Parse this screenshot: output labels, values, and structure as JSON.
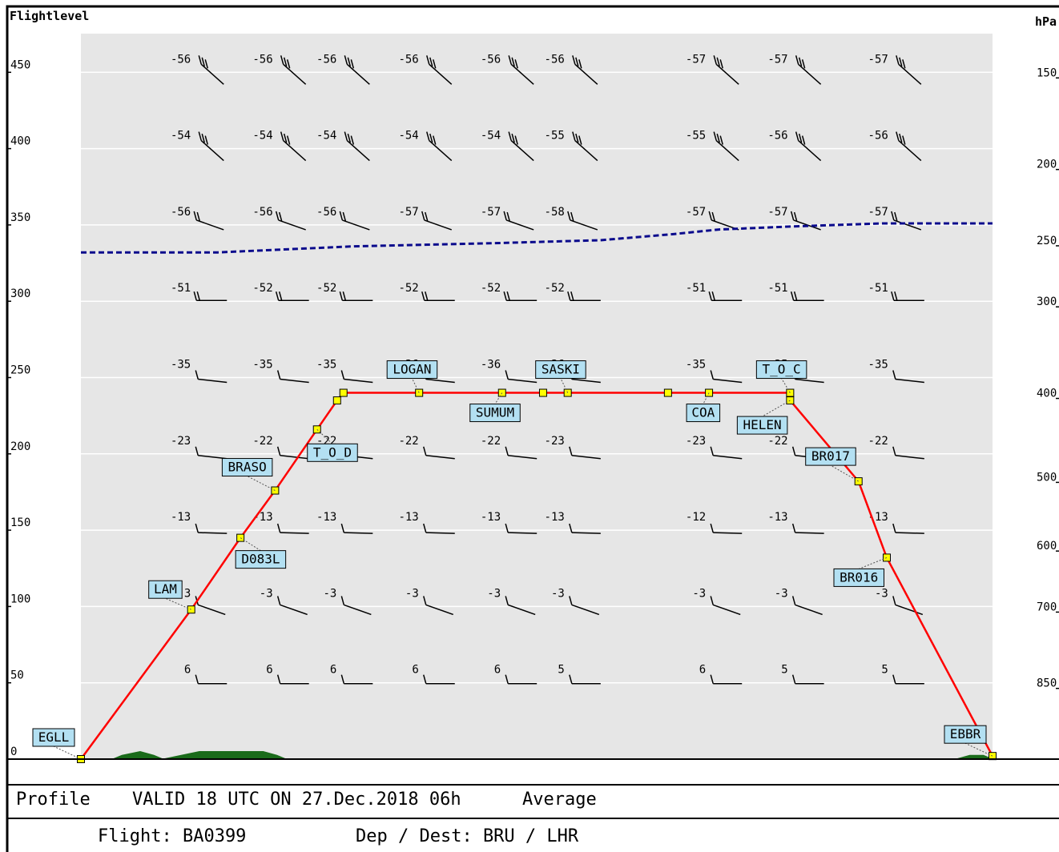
{
  "header": {
    "left_label": "Flightlevel",
    "right_label": "hPa"
  },
  "footer": {
    "profile_label": "Profile",
    "valid_text": "VALID 18 UTC ON 27.Dec.2018 06h",
    "average_label": "Average",
    "flight_text": "Flight: BA0399",
    "dep_dest_text": "Dep / Dest: BRU / LHR"
  },
  "chart_data": {
    "type": "line",
    "x_axis": {
      "label": "",
      "range": [
        0,
        100
      ],
      "ticks_shown": false
    },
    "y_axis": {
      "label": "Flightlevel",
      "range": [
        0,
        470
      ],
      "ticks": [
        0,
        50,
        100,
        150,
        200,
        250,
        300,
        350,
        400,
        450
      ]
    },
    "y2_axis": {
      "label": "hPa",
      "ticks": [
        {
          "fl": 450,
          "hpa": 150
        },
        {
          "fl": 390,
          "hpa": 200
        },
        {
          "fl": 340,
          "hpa": 250
        },
        {
          "fl": 300,
          "hpa": 300
        },
        {
          "fl": 240,
          "hpa": 400
        },
        {
          "fl": 185,
          "hpa": 500
        },
        {
          "fl": 140,
          "hpa": 600
        },
        {
          "fl": 100,
          "hpa": 700
        },
        {
          "fl": 50,
          "hpa": 850
        }
      ]
    },
    "grid": true,
    "background_color": "#e6e6e6",
    "route_color": "#ff0000",
    "tropopause_color": "#0a0a8c",
    "terrain_color": "#1a6b1a",
    "route": [
      {
        "x": 0.0,
        "fl": 0,
        "label": "EGLL"
      },
      {
        "x": 12.1,
        "fl": 98,
        "label": "LAM"
      },
      {
        "x": 17.5,
        "fl": 145,
        "label": "D083L"
      },
      {
        "x": 21.3,
        "fl": 176,
        "label": "BRASO"
      },
      {
        "x": 25.9,
        "fl": 216,
        "label": "T_O_D"
      },
      {
        "x": 28.1,
        "fl": 235,
        "label": ""
      },
      {
        "x": 28.8,
        "fl": 240,
        "label": ""
      },
      {
        "x": 37.1,
        "fl": 240,
        "label": "LOGAN"
      },
      {
        "x": 46.2,
        "fl": 240,
        "label": "SUMUM"
      },
      {
        "x": 50.7,
        "fl": 240,
        "label": ""
      },
      {
        "x": 53.4,
        "fl": 240,
        "label": "SASKI"
      },
      {
        "x": 64.4,
        "fl": 240,
        "label": ""
      },
      {
        "x": 68.9,
        "fl": 240,
        "label": "COA"
      },
      {
        "x": 77.8,
        "fl": 240,
        "label": "T_O_C"
      },
      {
        "x": 77.8,
        "fl": 235,
        "label": "HELEN"
      },
      {
        "x": 85.3,
        "fl": 182,
        "label": "BR017"
      },
      {
        "x": 88.4,
        "fl": 132,
        "label": "BR016"
      },
      {
        "x": 100.0,
        "fl": 2,
        "label": "EBBR"
      }
    ],
    "tropopause": [
      {
        "x": 0,
        "fl": 332
      },
      {
        "x": 15,
        "fl": 332
      },
      {
        "x": 30,
        "fl": 336
      },
      {
        "x": 45,
        "fl": 338
      },
      {
        "x": 57,
        "fl": 340
      },
      {
        "x": 65,
        "fl": 344
      },
      {
        "x": 70,
        "fl": 347
      },
      {
        "x": 78,
        "fl": 349
      },
      {
        "x": 88,
        "fl": 351
      },
      {
        "x": 100,
        "fl": 351
      }
    ],
    "terrain": [
      {
        "x": 3.5,
        "fl": 0
      },
      {
        "x": 4.5,
        "fl": 1
      },
      {
        "x": 6.5,
        "fl": 2
      },
      {
        "x": 8,
        "fl": 1
      },
      {
        "x": 9,
        "fl": 0
      },
      {
        "x": 11,
        "fl": 1
      },
      {
        "x": 13,
        "fl": 2
      },
      {
        "x": 16,
        "fl": 2
      },
      {
        "x": 20,
        "fl": 2
      },
      {
        "x": 21.5,
        "fl": 1
      },
      {
        "x": 22.5,
        "fl": 0
      },
      {
        "x": 96,
        "fl": 0
      },
      {
        "x": 97.5,
        "fl": 1
      },
      {
        "x": 99,
        "fl": 1
      },
      {
        "x": 100,
        "fl": 0
      }
    ],
    "wind_levels": [
      {
        "fl": 450,
        "temps": [
          -56,
          -56,
          -56,
          -56,
          -56,
          -56,
          -57,
          -57,
          -57
        ]
      },
      {
        "fl": 400,
        "temps": [
          -54,
          -54,
          -54,
          -54,
          -54,
          -55,
          -55,
          -56,
          -56
        ]
      },
      {
        "fl": 350,
        "temps": [
          -56,
          -56,
          -56,
          -57,
          -57,
          -58,
          -57,
          -57,
          -57
        ]
      },
      {
        "fl": 300,
        "temps": [
          -51,
          -52,
          -52,
          -52,
          -52,
          -52,
          -51,
          -51,
          -51
        ]
      },
      {
        "fl": 250,
        "temps": [
          -35,
          -35,
          -35,
          -36,
          -36,
          -36,
          -35,
          -35,
          -35
        ]
      },
      {
        "fl": 200,
        "temps": [
          -23,
          -22,
          -22,
          -22,
          -22,
          -23,
          -23,
          -22,
          -22
        ]
      },
      {
        "fl": 150,
        "temps": [
          -13,
          -13,
          -13,
          -13,
          -13,
          -13,
          -12,
          -13,
          -13
        ]
      },
      {
        "fl": 100,
        "temps": [
          -3,
          -3,
          -3,
          -3,
          -3,
          -3,
          -3,
          -3,
          -3
        ]
      },
      {
        "fl": 50,
        "temps": [
          6,
          6,
          6,
          6,
          6,
          5,
          6,
          5,
          5
        ]
      }
    ],
    "wind_columns_x": [
      12.5,
      21.5,
      28.5,
      37.5,
      46.5,
      53.5,
      69.0,
      78.0,
      89.0
    ]
  }
}
